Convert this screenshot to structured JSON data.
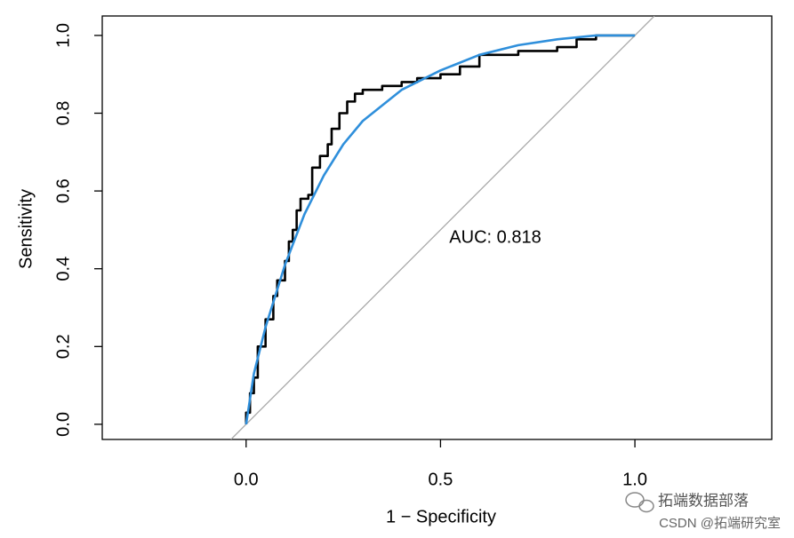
{
  "chart_data": {
    "type": "line",
    "x_label": "1 − Specificity",
    "y_label": "Sensitivity",
    "annotation": "AUC: 0.818",
    "xlim": [
      -0.37,
      1.352
    ],
    "ylim": [
      -0.039,
      1.05
    ],
    "xticks": [
      {
        "value": 0,
        "label": "0.0"
      },
      0.5,
      {
        "value": 1,
        "label": "1.0"
      }
    ],
    "yticks": [
      {
        "value": 0,
        "label": "0.0"
      },
      0.2,
      0.4,
      0.6,
      0.8,
      {
        "value": 1,
        "label": "1.0"
      }
    ],
    "reference_line": true,
    "series": [
      {
        "color": "#000000",
        "step": true,
        "x": [
          0,
          0,
          0.01,
          0.02,
          0.03,
          0.05,
          0.07,
          0.08,
          0.1,
          0.11,
          0.12,
          0.13,
          0.14,
          0.16,
          0.17,
          0.19,
          0.21,
          0.22,
          0.24,
          0.26,
          0.28,
          0.3,
          0.35,
          0.4,
          0.44,
          0.5,
          0.55,
          0.6,
          0.7,
          0.8,
          0.85,
          0.9,
          1
        ],
        "values": [
          0,
          0.03,
          0.08,
          0.12,
          0.2,
          0.27,
          0.33,
          0.37,
          0.42,
          0.47,
          0.5,
          0.55,
          0.58,
          0.59,
          0.66,
          0.69,
          0.72,
          0.76,
          0.8,
          0.83,
          0.85,
          0.86,
          0.87,
          0.88,
          0.89,
          0.9,
          0.92,
          0.95,
          0.96,
          0.97,
          0.99,
          1,
          1
        ]
      },
      {
        "color": "#2f8fdb",
        "step": false,
        "x": [
          0,
          0.02,
          0.05,
          0.1,
          0.15,
          0.2,
          0.25,
          0.3,
          0.4,
          0.5,
          0.6,
          0.7,
          0.8,
          0.9,
          1
        ],
        "values": [
          0,
          0.13,
          0.25,
          0.41,
          0.54,
          0.64,
          0.72,
          0.78,
          0.86,
          0.91,
          0.95,
          0.975,
          0.99,
          1,
          1
        ]
      }
    ]
  },
  "watermark": {
    "line1": "拓端数据部落",
    "line2": "CSDN @拓端研究室"
  }
}
